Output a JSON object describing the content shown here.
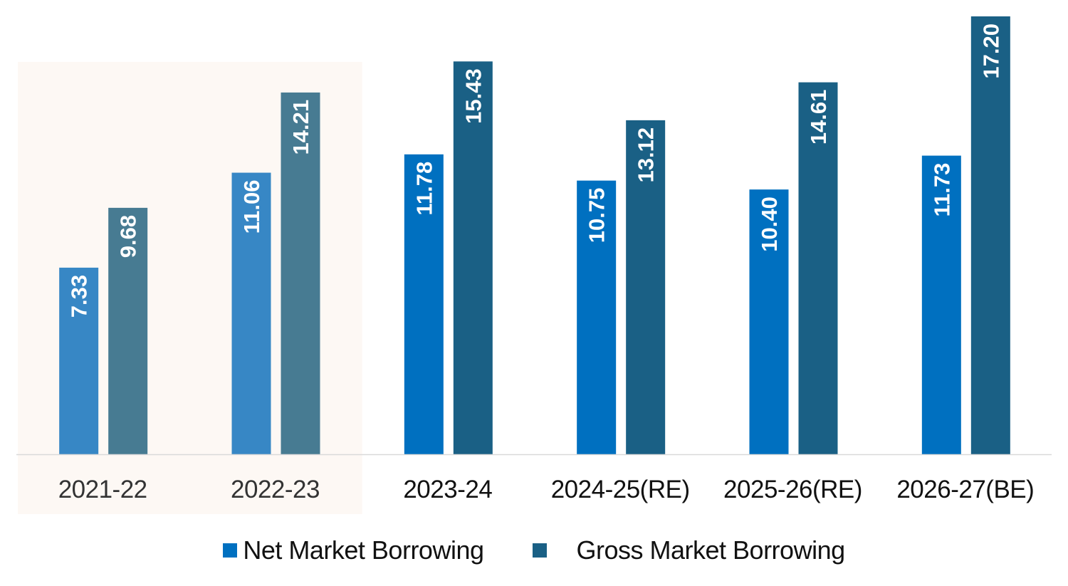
{
  "chart_data": {
    "type": "bar",
    "title": "",
    "xlabel": "",
    "ylabel": "",
    "ylim": [
      0,
      17.2
    ],
    "grid": false,
    "legend_position": "bottom",
    "categories": [
      "2021-22",
      "2022-23",
      "2023-24",
      "2024-25(RE)",
      "2025-26(RE)",
      "2026-27(BE)"
    ],
    "shaded_categories": [
      "2021-22",
      "2022-23"
    ],
    "series": [
      {
        "name": "Net Market Borrowing",
        "values": [
          7.33,
          11.06,
          11.78,
          10.75,
          10.4,
          11.73
        ],
        "labels": [
          "7.33",
          "11.06",
          "11.78",
          "10.75",
          "10.40",
          "11.73"
        ],
        "color": "#0070c0",
        "shaded_color": "#3787c5"
      },
      {
        "name": "Gross Market Borrowing",
        "values": [
          9.68,
          14.21,
          15.43,
          13.12,
          14.61,
          17.2
        ],
        "labels": [
          "9.68",
          "14.21",
          "15.43",
          "13.12",
          "14.61",
          "17.20"
        ],
        "color": "#1a6085",
        "shaded_color": "#477b92"
      }
    ],
    "shade_color": "#fdf8f4"
  }
}
